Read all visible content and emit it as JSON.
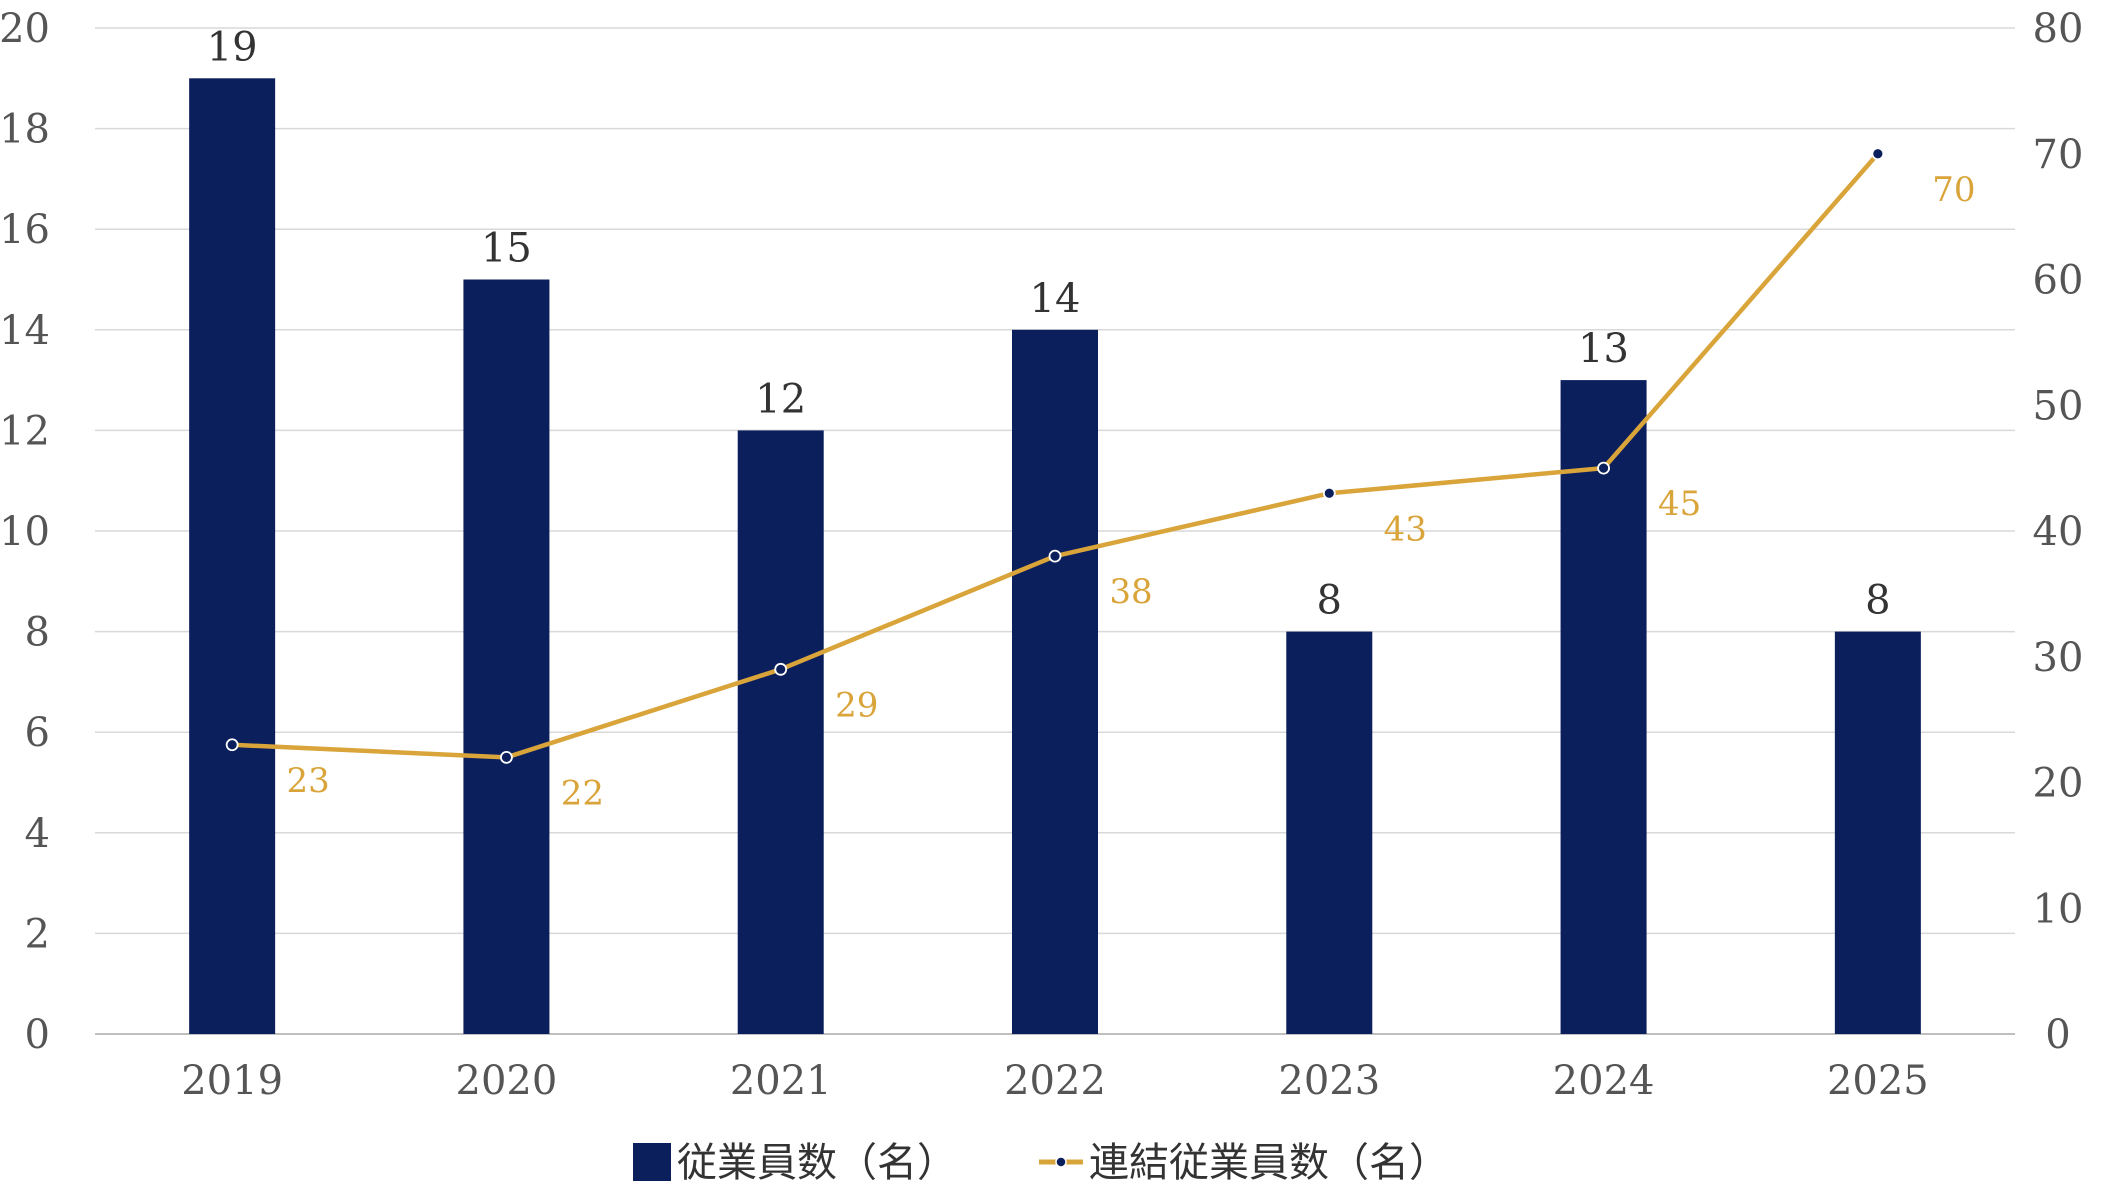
{
  "chart_data": {
    "type": "bar",
    "categories": [
      "2019",
      "2020",
      "2021",
      "2022",
      "2023",
      "2024",
      "2025"
    ],
    "series": [
      {
        "name": "従業員数（名）",
        "type": "bar",
        "axis": "left",
        "color": "#0b1f5c",
        "values": [
          19,
          15,
          12,
          14,
          8,
          13,
          8
        ]
      },
      {
        "name": "連結従業員数（名）",
        "type": "line",
        "axis": "right",
        "color": "#d9a43a",
        "values": [
          23,
          22,
          29,
          38,
          43,
          45,
          70
        ]
      }
    ],
    "y_left": {
      "min": 0,
      "max": 20,
      "step": 2,
      "ticks": [
        "0",
        "2",
        "4",
        "6",
        "8",
        "10",
        "12",
        "14",
        "16",
        "18",
        "20"
      ]
    },
    "y_right": {
      "min": 0,
      "max": 80,
      "step": 10,
      "ticks": [
        "0",
        "10",
        "20",
        "30",
        "40",
        "50",
        "60",
        "70",
        "80"
      ]
    },
    "grid": true,
    "legend_position": "bottom"
  }
}
